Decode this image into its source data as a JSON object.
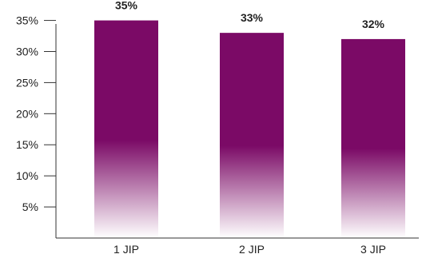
{
  "chart_data": {
    "type": "bar",
    "categories": [
      "1 JIP",
      "2 JIP",
      "3 JIP"
    ],
    "values": [
      35,
      33,
      32
    ],
    "data_labels": [
      "35%",
      "33%",
      "32%"
    ],
    "y_ticks": [
      5,
      10,
      15,
      20,
      25,
      30,
      35
    ],
    "y_tick_labels": [
      "5%",
      "10%",
      "15%",
      "20%",
      "25%",
      "30%",
      "35%"
    ],
    "ylim": [
      0,
      37
    ],
    "title": "",
    "xlabel": "",
    "ylabel": "",
    "grid": false,
    "legend": "none",
    "colors": {
      "bar": "#7b0a66",
      "bar_fade": "#ffffff",
      "axis": "#333333"
    }
  }
}
